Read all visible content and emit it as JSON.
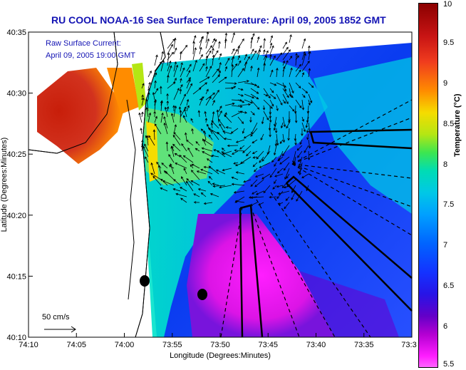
{
  "title": "RU COOL  NOAA-16  Sea Surface Temperature:  April 09, 2005 1852 GMT",
  "current_label": "Raw Surface Current:",
  "current_time": "April 09, 2005 19:00 GMT",
  "scale_label": "50 cm/s",
  "x_axis_label": "Longitude (Degrees:Minutes)",
  "y_axis_label": "Latitude (Degrees:Minutes)",
  "x_ticks": [
    "74:10",
    "74:05",
    "74:00",
    "73:55",
    "73:50",
    "73:45",
    "73:40",
    "73:35",
    "73:3"
  ],
  "y_ticks": [
    "40:35",
    "40:30",
    "40:25",
    "40:20",
    "40:15",
    "40:10"
  ],
  "colorbar": {
    "label": "Temperature (°C)",
    "ticks": [
      "10",
      "9.5",
      "9",
      "8.5",
      "8",
      "7.5",
      "7",
      "6.5",
      "6",
      "5.5"
    ]
  }
}
